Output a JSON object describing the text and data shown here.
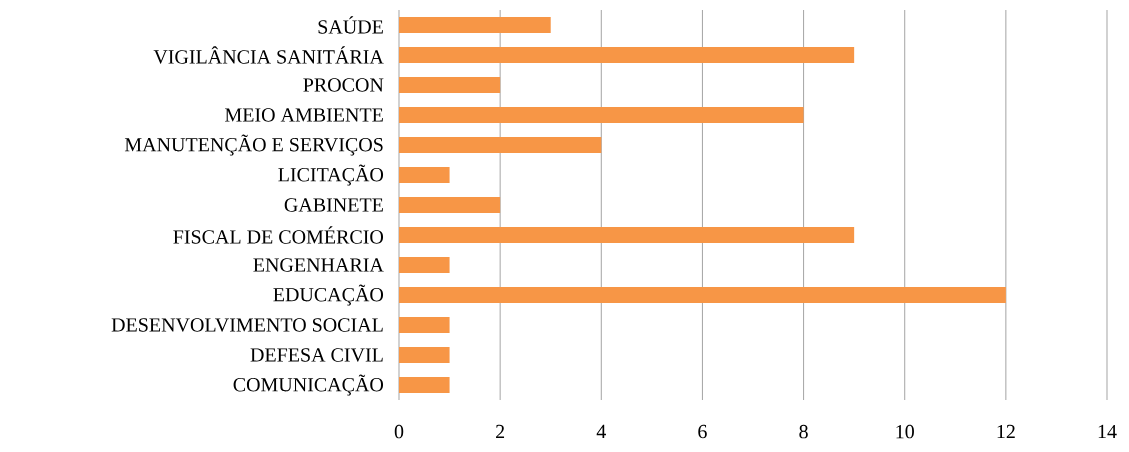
{
  "chart_data": {
    "type": "bar",
    "orientation": "horizontal",
    "categories": [
      "SAÚDE",
      "VIGILÂNCIA SANITÁRIA",
      "PROCON",
      "MEIO AMBIENTE",
      "MANUTENÇÃO E SERVIÇOS",
      "LICITAÇÃO",
      "GABINETE",
      "FISCAL DE COMÉRCIO",
      "ENGENHARIA",
      "EDUCAÇÃO",
      "DESENVOLVIMENTO SOCIAL",
      "DEFESA CIVIL",
      "COMUNICAÇÃO"
    ],
    "values": [
      3,
      9,
      2,
      8,
      4,
      1,
      2,
      9,
      1,
      12,
      1,
      1,
      1
    ],
    "color": "#f79646",
    "xlim": [
      0,
      14
    ],
    "xticks": [
      0,
      2,
      4,
      6,
      8,
      10,
      12,
      14
    ],
    "grid": "x"
  }
}
